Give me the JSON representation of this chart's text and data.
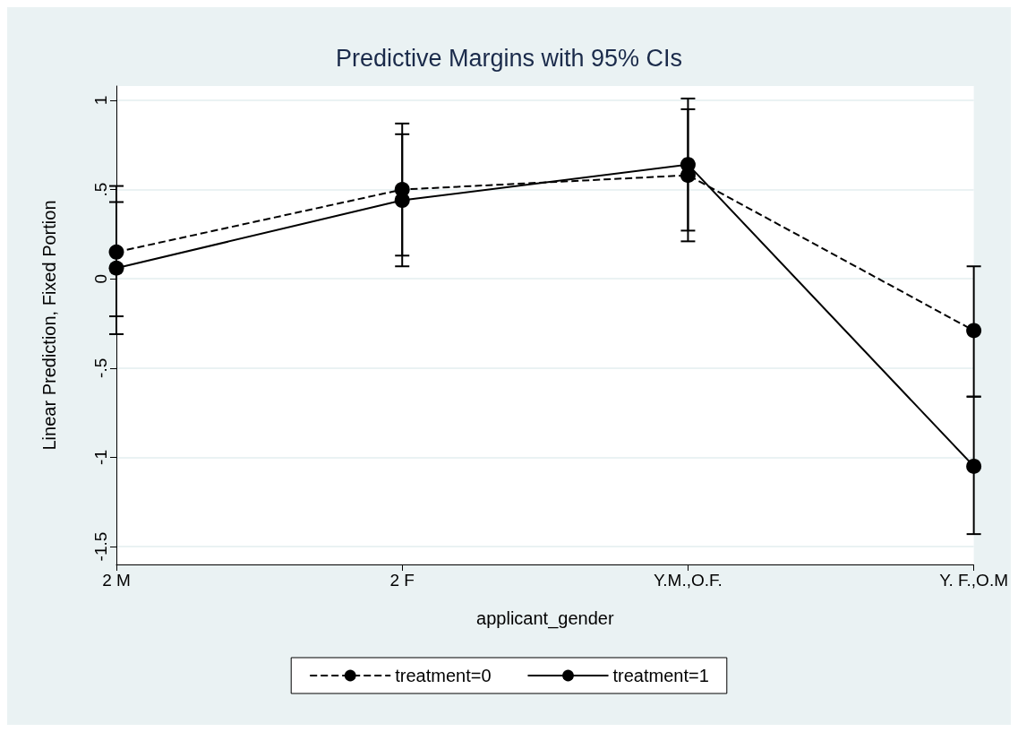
{
  "chart_data": {
    "type": "line",
    "title": "Predictive Margins with 95% CIs",
    "xlabel": "applicant_gender",
    "ylabel": "Linear Prediction, Fixed Portion",
    "categories": [
      "2 M",
      "2 F",
      "Y.M.,O.F.",
      "Y. F.,O.M"
    ],
    "series": [
      {
        "name": "treatment=0",
        "color": "#000000",
        "line_style": "dashed",
        "values": [
          0.15,
          0.5,
          0.58,
          -0.29
        ],
        "errors": [
          [
            -0.21,
            0.52
          ],
          [
            0.13,
            0.87
          ],
          [
            0.21,
            0.95
          ],
          [
            -0.66,
            0.07
          ]
        ]
      },
      {
        "name": "treatment=1",
        "color": "#000000",
        "line_style": "solid",
        "values": [
          0.06,
          0.44,
          0.64,
          -1.05
        ],
        "errors": [
          [
            -0.31,
            0.43
          ],
          [
            0.07,
            0.81
          ],
          [
            0.27,
            1.01
          ],
          [
            -1.43,
            -0.66
          ]
        ]
      }
    ],
    "ylim": [
      -1.6,
      1.08
    ],
    "yticks": [
      {
        "value": 1,
        "label": "1"
      },
      {
        "value": 0.5,
        "label": ".5"
      },
      {
        "value": 0,
        "label": "0"
      },
      {
        "value": -0.5,
        "label": "-.5"
      },
      {
        "value": -1,
        "label": "-1"
      },
      {
        "value": -1.5,
        "label": "-1.5"
      }
    ],
    "grid": "y",
    "legend": "bottom",
    "marker": "circle"
  }
}
